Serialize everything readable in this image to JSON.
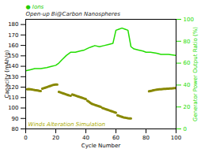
{
  "chart_data": {
    "type": "line",
    "xlabel": "Cycle Number",
    "ylabel": "Capacity (mAh/g)",
    "y2label": "Generator Power Output Ratio (%)",
    "xlim": [
      0,
      100
    ],
    "ylim": [
      80,
      185
    ],
    "y2lim": [
      0,
      100
    ],
    "xticks": [
      0,
      20,
      40,
      60,
      80,
      100
    ],
    "yticks": [
      80,
      90,
      100,
      110,
      120,
      130,
      140,
      150,
      160,
      170,
      180
    ],
    "y2ticks": [
      0,
      20,
      40,
      60,
      80,
      100
    ],
    "series": [
      {
        "color": "#888800",
        "x": [
          1,
          2,
          3,
          4,
          5,
          6,
          7,
          8,
          9,
          10
        ],
        "values": [
          118,
          118.2,
          118.0,
          117.8,
          117.5,
          117.2,
          117.0,
          116.8,
          116.5,
          116.3
        ]
      },
      {
        "color": "#888800",
        "x": [
          11,
          12,
          13,
          14,
          15,
          16,
          17,
          18,
          19,
          20,
          21
        ],
        "values": [
          118.5,
          119.0,
          119.5,
          120.0,
          120.5,
          121.0,
          121.5,
          122.0,
          122.3,
          122.5,
          122.5
        ]
      },
      {
        "color": "#888800",
        "x": [
          22,
          23,
          24,
          25,
          26,
          27,
          28,
          29,
          30
        ],
        "values": [
          115.5,
          115.0,
          114.5,
          114.0,
          113.5,
          113.0,
          112.5,
          112.0,
          111.8
        ]
      },
      {
        "color": "#888800",
        "x": [
          31,
          32,
          33,
          34,
          35,
          36,
          37,
          38,
          39,
          40
        ],
        "values": [
          113,
          112.5,
          112.0,
          111.5,
          111.0,
          110.5,
          110.0,
          109.5,
          109.0,
          108.5
        ]
      },
      {
        "color": "#888800",
        "x": [
          41,
          42,
          43,
          44,
          45,
          46,
          47,
          48,
          49,
          50
        ],
        "values": [
          107,
          106,
          105,
          104,
          103.5,
          103,
          102.5,
          102,
          101.5,
          101
        ]
      },
      {
        "color": "#888800",
        "x": [
          51,
          52,
          53,
          54,
          55,
          56,
          57,
          58,
          59,
          60
        ],
        "values": [
          100,
          99.5,
          99,
          98.5,
          98,
          97.5,
          97,
          96.5,
          96,
          95.5
        ]
      },
      {
        "color": "#888800",
        "x": [
          61,
          62,
          63,
          64,
          65,
          66,
          67,
          68,
          69,
          70
        ],
        "values": [
          93,
          92.5,
          92,
          91.5,
          91,
          90.8,
          90.5,
          90.2,
          90.0,
          90.0
        ]
      },
      {
        "color": "#888800",
        "x": [
          82,
          83,
          84,
          85,
          86,
          87,
          88,
          89,
          90,
          91,
          92,
          93,
          94,
          95,
          96,
          97,
          98,
          99,
          100
        ],
        "values": [
          116,
          116.3,
          116.6,
          117.0,
          117.3,
          117.5,
          117.7,
          117.9,
          118.0,
          118.2,
          118.3,
          118.4,
          118.5,
          118.6,
          118.7,
          118.8,
          118.9,
          119.0,
          119.0
        ]
      },
      {
        "color": "#22dd00",
        "axis": "y2",
        "x": [
          0,
          3,
          6,
          10,
          14,
          17,
          20,
          22,
          24,
          27,
          30,
          33,
          36,
          39,
          42,
          44,
          46,
          49,
          52,
          55,
          58,
          60,
          62,
          64,
          66,
          68,
          70,
          72,
          75,
          78,
          80,
          83,
          87,
          90,
          95,
          100
        ],
        "values": [
          53,
          54,
          55,
          55,
          56,
          57,
          58,
          60,
          63,
          67,
          70,
          70,
          71,
          72,
          74,
          75,
          76,
          75,
          76,
          77,
          78,
          90,
          91,
          92,
          91,
          90,
          75,
          73,
          72,
          71,
          70,
          70,
          69,
          68,
          68,
          67
        ]
      }
    ],
    "annotations": [
      {
        "text": "● Ions",
        "color": "#22cc00"
      },
      {
        "text": "Open-up Bi@Carbon Nanospheres",
        "color": "#222222"
      },
      {
        "text": "Winds Alteration Simulation",
        "color": "#aaaa00"
      }
    ]
  }
}
